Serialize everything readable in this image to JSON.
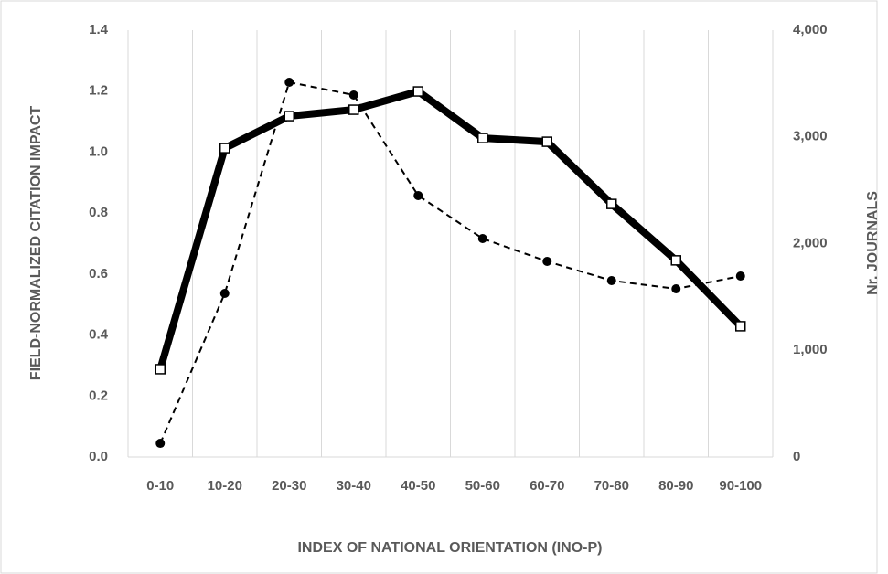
{
  "chart_data": {
    "type": "line",
    "categories": [
      "0-10",
      "10-20",
      "20-30",
      "30-40",
      "40-50",
      "50-60",
      "60-70",
      "70-80",
      "80-90",
      "90-100"
    ],
    "series": [
      {
        "color": "#000000",
        "values": [
          0.288,
          1.013,
          1.118,
          1.139,
          1.199,
          1.046,
          1.034,
          0.83,
          0.645,
          0.429
        ]
      },
      {
        "color": "#000000",
        "axis": "y2",
        "values": [
          128,
          1533,
          3512,
          3392,
          2450,
          2047,
          1833,
          1653,
          1576,
          1696
        ]
      }
    ],
    "ylabel": "FIELD-NORMALIZED CITATION IMPACT",
    "y2label": "Nr. JOURNALS",
    "xlabel": "INDEX OF NATIONAL ORIENTATION (INO-P)",
    "ylim": [
      0,
      1.4
    ],
    "yticks": [
      {
        "value": 0,
        "label": "0.0"
      },
      0.2,
      0.4,
      0.6,
      0.8,
      {
        "value": 1,
        "label": "1.0"
      },
      1.2,
      1.4
    ],
    "y2lim": [
      0,
      4000
    ],
    "y2ticks": [
      0,
      {
        "value": 1000,
        "label": "1,000"
      },
      {
        "value": 2000,
        "label": "2,000"
      },
      {
        "value": 3000,
        "label": "3,000"
      },
      {
        "value": 4000,
        "label": "4,000"
      }
    ],
    "grid": true
  }
}
